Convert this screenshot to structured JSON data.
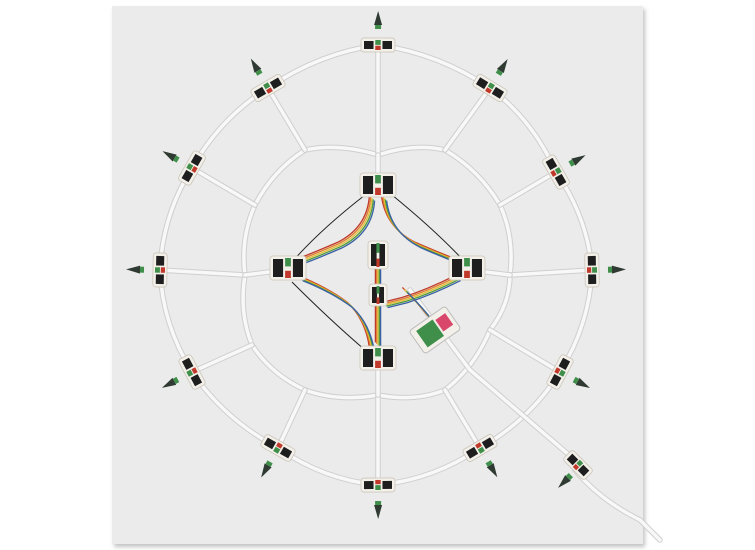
{
  "photo": {
    "subject": "octagonal-web-of-white-cabled-modules",
    "colors": {
      "background": "#ebebeb",
      "frame_shadow": "#b5b5b5",
      "cable": "#f8f8f8",
      "cable_edge": "#cfcfcf",
      "board_white": "#f3f0ea",
      "connector_black": "#1e1e1e",
      "pcb_green": "#3f8f4a",
      "ribbon_red": "#c0392b",
      "ribbon_orange": "#e07b2a",
      "ribbon_yellow": "#e3c036",
      "ribbon_green": "#4f9a3c",
      "ribbon_blue": "#3a5fa5",
      "chip_pink": "#d9486a",
      "cone_dark": "#2f3b32"
    }
  }
}
